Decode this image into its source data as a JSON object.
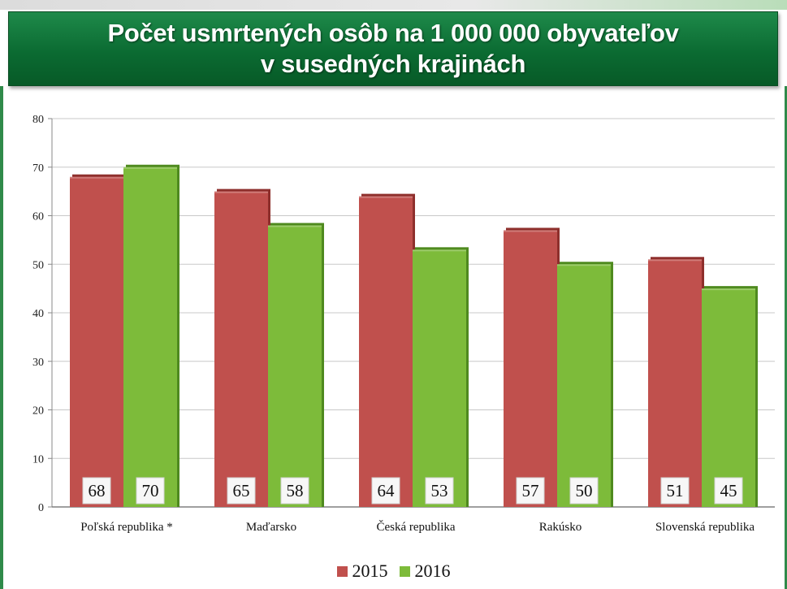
{
  "title": {
    "line1": "Počet usmrtených osôb na 1 000 000 obyvateľov",
    "line2": "v susedných krajinách"
  },
  "colors": {
    "series_2015": "#c0504d",
    "series_2016": "#7dbb3a",
    "banner": "#0b6b32",
    "grid": "#c8c8c8"
  },
  "chart_data": {
    "type": "bar",
    "title": "Počet usmrtených osôb na 1 000 000 obyvateľov v susedných krajinách",
    "categories": [
      "Poľská republika  *",
      "Maďarsko",
      "Česká republika",
      "Rakúsko",
      "Slovenská republika"
    ],
    "series": [
      {
        "name": "2015",
        "values": [
          68,
          65,
          64,
          57,
          51
        ]
      },
      {
        "name": "2016",
        "values": [
          70,
          58,
          53,
          50,
          45
        ]
      }
    ],
    "ylim": [
      0,
      80
    ],
    "yticks": [
      0,
      10,
      20,
      30,
      40,
      50,
      60,
      70,
      80
    ],
    "xlabel": "",
    "ylabel": "",
    "grid": true,
    "legend_position": "bottom"
  },
  "legend": [
    {
      "label": "2015",
      "color_key": "series_2015"
    },
    {
      "label": "2016",
      "color_key": "series_2016"
    }
  ]
}
